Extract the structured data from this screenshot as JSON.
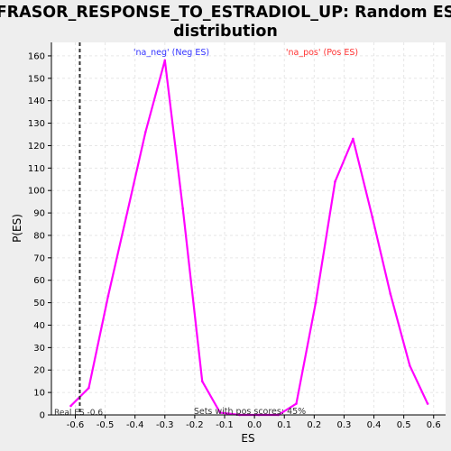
{
  "chart_data": {
    "type": "line",
    "title_lines": [
      "FRASOR_RESPONSE_TO_ESTRADIOL_UP: Random ES",
      "distribution"
    ],
    "xlabel": "ES",
    "ylabel": "P(ES)",
    "xlim": [
      -0.68,
      0.64
    ],
    "ylim": [
      0,
      166
    ],
    "xticks": [
      -0.6,
      -0.5,
      -0.4,
      -0.3,
      -0.2,
      -0.1,
      0.0,
      0.1,
      0.2,
      0.3,
      0.4,
      0.5,
      0.6
    ],
    "xtick_labels": [
      "-0.6",
      "-0.5",
      "-0.4",
      "-0.3",
      "-0.2",
      "-0.1",
      "0.0",
      "0.1",
      "0.2",
      "0.3",
      "0.4",
      "0.5",
      "0.6"
    ],
    "yticks": [
      0,
      10,
      20,
      30,
      40,
      50,
      60,
      70,
      80,
      90,
      100,
      110,
      120,
      130,
      140,
      150,
      160
    ],
    "ytick_labels": [
      "0",
      "10",
      "20",
      "30",
      "40",
      "50",
      "60",
      "70",
      "80",
      "90",
      "100",
      "110",
      "120",
      "130",
      "140",
      "150",
      "160"
    ],
    "grid": true,
    "series": [
      {
        "color": "#ff00ff",
        "points": [
          [
            -0.615,
            4
          ],
          [
            -0.555,
            12
          ],
          [
            -0.49,
            53
          ],
          [
            -0.43,
            88
          ],
          [
            -0.365,
            126
          ],
          [
            -0.3,
            158
          ],
          [
            -0.24,
            92
          ],
          [
            -0.175,
            15
          ],
          [
            -0.115,
            1
          ],
          [
            -0.05,
            0
          ],
          [
            0.015,
            0
          ],
          [
            0.08,
            0
          ],
          [
            0.14,
            5
          ],
          [
            0.205,
            50
          ],
          [
            0.27,
            104
          ],
          [
            0.33,
            123
          ],
          [
            0.395,
            88
          ],
          [
            0.455,
            54
          ],
          [
            0.52,
            22
          ],
          [
            0.58,
            5
          ]
        ]
      }
    ],
    "real_es": {
      "value": -0.585,
      "label": "Real ES -0.6"
    },
    "annotations": {
      "neg_label": {
        "text": "'na_neg' (Neg ES)",
        "color": "#3333ff"
      },
      "pos_label": {
        "text": "'na_pos' (Pos ES)",
        "color": "#ff3333"
      },
      "pos_score_text": "Sets with pos scores: 45%"
    },
    "colors": {
      "plot_bg": "#ffffff",
      "page_bg": "#eeeeee",
      "grid": "#e6e6e6",
      "axis": "#000000"
    }
  }
}
